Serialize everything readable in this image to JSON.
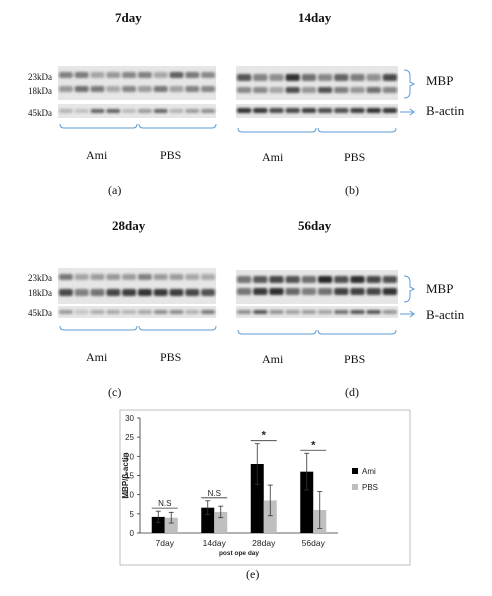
{
  "panels": [
    {
      "id": "a",
      "title": "7day",
      "caption": "(a)"
    },
    {
      "id": "b",
      "title": "14day",
      "caption": "(b)"
    },
    {
      "id": "c",
      "title": "28day",
      "caption": "(c)"
    },
    {
      "id": "d",
      "title": "56day",
      "caption": "(d)"
    }
  ],
  "markers": {
    "kda_23": "23kDa",
    "kda_18": "18kDa",
    "kda_45": "45kDa"
  },
  "groups": {
    "ami": "Ami",
    "pbs": "PBS"
  },
  "bands": {
    "mbp": "MBP",
    "actin": "B-actin"
  },
  "figure_e_caption": "(e)",
  "chart_data": {
    "type": "bar",
    "categories": [
      "7day",
      "14day",
      "28day",
      "56day"
    ],
    "series": [
      {
        "name": "Ami",
        "color": "#000000",
        "values": [
          4.2,
          6.6,
          18.0,
          16.0
        ],
        "errors": [
          1.5,
          1.8,
          5.3,
          4.8
        ]
      },
      {
        "name": "PBS",
        "color": "#bfbfbf",
        "values": [
          4.0,
          5.5,
          8.5,
          6.0
        ],
        "errors": [
          1.4,
          1.5,
          4.0,
          4.8
        ]
      }
    ],
    "xlabel": "post ope day",
    "ylabel": "MBP/β-actin",
    "ylim": [
      0,
      30
    ],
    "yticks": [
      0,
      5,
      10,
      15,
      20,
      25,
      30
    ],
    "annotations": [
      "N.S",
      "N.S",
      "*",
      "*"
    ],
    "grid": false,
    "legend_position": "right"
  }
}
